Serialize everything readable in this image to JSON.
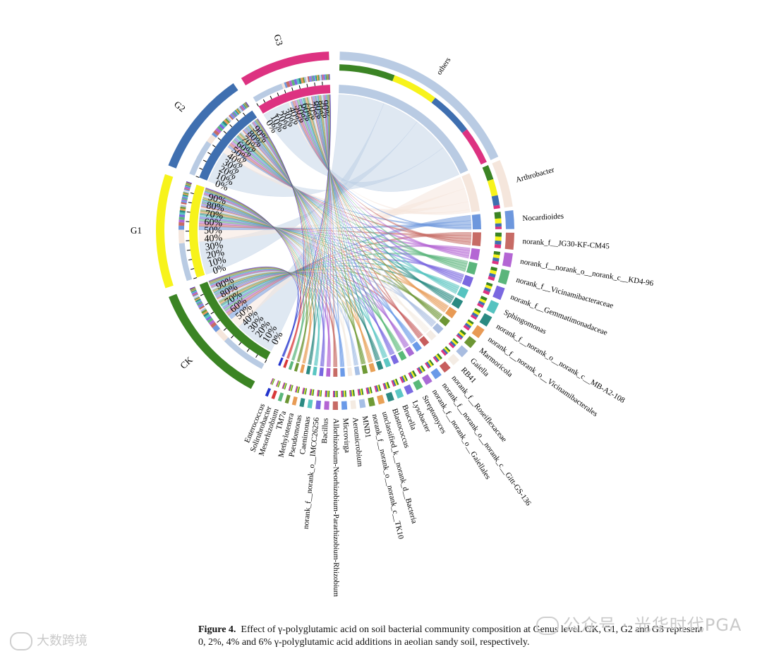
{
  "chart_data": {
    "type": "chord",
    "samples": [
      {
        "name": "CK",
        "color": "#3b8424"
      },
      {
        "name": "G1",
        "color": "#f7f31b"
      },
      {
        "name": "G2",
        "color": "#3f6fb0"
      },
      {
        "name": "G3",
        "color": "#dd3281"
      }
    ],
    "genera": [
      {
        "name": "others",
        "color": "#b9cbe3",
        "values": [
          34,
          28,
          27,
          23
        ]
      },
      {
        "name": "Arthrobacter",
        "color": "#f5e6dc",
        "values": [
          9,
          10,
          6,
          2
        ]
      },
      {
        "name": "Nocardioides",
        "color": "#6d97dd",
        "values": [
          4,
          3,
          2,
          1.5
        ]
      },
      {
        "name": "norank_f__JG30-KF-CM45",
        "color": "#c76b65",
        "values": [
          2.5,
          2.5,
          2.3,
          2.2
        ]
      },
      {
        "name": "norank_f__norank_o__norank_c__KD4-96",
        "color": "#b466d4",
        "values": [
          2,
          2,
          2,
          1.8
        ]
      },
      {
        "name": "norank_f__Vicinamibacteraceae",
        "color": "#5bb57c",
        "values": [
          2,
          2,
          2,
          2
        ]
      },
      {
        "name": "norank_f__Gemmatimonadaceae",
        "color": "#7a68e0",
        "values": [
          1.6,
          1.7,
          1.8,
          1.9
        ]
      },
      {
        "name": "Sphingomonas",
        "color": "#56c3c0",
        "values": [
          1.8,
          1.6,
          1.5,
          1.6
        ]
      },
      {
        "name": "norank_f__norank_o__norank_c__MB-A2-108",
        "color": "#2a8a82",
        "values": [
          1.5,
          1.5,
          1.6,
          1.5
        ]
      },
      {
        "name": "norank_f__norank_o__Vicinamibacterales",
        "color": "#e89a55",
        "values": [
          1.3,
          1.4,
          1.5,
          1.6
        ]
      },
      {
        "name": "Marmoricola",
        "color": "#6d9634",
        "values": [
          1.5,
          1.3,
          1.2,
          1.0
        ]
      },
      {
        "name": "Gaiella",
        "color": "#a9bde0",
        "values": [
          1.1,
          1.2,
          1.3,
          1.3
        ]
      },
      {
        "name": "RB41",
        "color": "#f4ece4",
        "values": [
          1,
          1,
          1.2,
          1.3
        ]
      },
      {
        "name": "norank_f__Roseiflexaceae",
        "color": "#c75d5d",
        "values": [
          1.2,
          1.1,
          1.0,
          1.0
        ]
      },
      {
        "name": "norank_f__norank_o__norank_c__Gitt-GS-136",
        "color": "#6a9ae8",
        "values": [
          1,
          1.1,
          1.1,
          1.0
        ]
      },
      {
        "name": "norank_f__norank_o__Gaiellales",
        "color": "#a96bd6",
        "values": [
          1,
          1,
          1,
          1
        ]
      },
      {
        "name": "Streptomyces",
        "color": "#5ab978",
        "values": [
          1.1,
          1.0,
          0.9,
          0.9
        ]
      },
      {
        "name": "Lysobacter",
        "color": "#7b6be2",
        "values": [
          0.8,
          0.9,
          1.0,
          1.1
        ]
      },
      {
        "name": "Brucella",
        "color": "#5cc7c4",
        "values": [
          0.9,
          0.9,
          0.9,
          0.9
        ]
      },
      {
        "name": "Blastococcus",
        "color": "#2d8a82",
        "values": [
          1,
          0.9,
          0.8,
          0.8
        ]
      },
      {
        "name": "unclassified_k__norank_d__Bacteria",
        "color": "#e8a157",
        "values": [
          0.8,
          0.8,
          0.9,
          0.9
        ]
      },
      {
        "name": "norank_f__norank_o__norank_c__TK10",
        "color": "#6f9a35",
        "values": [
          0.8,
          0.8,
          0.8,
          0.9
        ]
      },
      {
        "name": "MND1",
        "color": "#a6bfe5",
        "values": [
          0.8,
          0.8,
          0.8,
          0.8
        ]
      },
      {
        "name": "Aeromicrobium",
        "color": "#f4ebe2",
        "values": [
          0.9,
          0.8,
          0.7,
          0.6
        ]
      },
      {
        "name": "Microvirga",
        "color": "#6b9ae8",
        "values": [
          0.7,
          0.8,
          0.8,
          0.8
        ]
      },
      {
        "name": "Allorhizobium-Neorhizobium-Pararhizobium-Rhizobium",
        "color": "#c76b65",
        "values": [
          0.8,
          0.7,
          0.7,
          0.7
        ]
      },
      {
        "name": "Bacillus",
        "color": "#b365d3",
        "values": [
          0.7,
          0.7,
          0.7,
          0.7
        ]
      },
      {
        "name": "norank_f__norank_o__IMCC26256",
        "color": "#7868e0",
        "values": [
          0.6,
          0.7,
          0.7,
          0.7
        ]
      },
      {
        "name": "Caenimonas",
        "color": "#5ac6c2",
        "values": [
          0.7,
          0.6,
          0.6,
          0.6
        ]
      },
      {
        "name": "Pseudomonas",
        "color": "#2b8a82",
        "values": [
          0.6,
          0.6,
          0.6,
          0.6
        ]
      },
      {
        "name": "Methylotenera",
        "color": "#e89c55",
        "values": [
          0.6,
          0.6,
          0.5,
          0.5
        ]
      },
      {
        "name": "TM7a",
        "color": "#6c9634",
        "values": [
          0.5,
          0.5,
          0.5,
          0.5
        ]
      },
      {
        "name": "Mesorhizobium",
        "color": "#5bb67c",
        "values": [
          0.5,
          0.5,
          0.5,
          0.5
        ]
      },
      {
        "name": "Solirubrobacter",
        "color": "#d83a3a",
        "values": [
          0.5,
          0.5,
          0.4,
          0.4
        ]
      },
      {
        "name": "Enterococcus",
        "color": "#2233cc",
        "values": [
          0.4,
          0.4,
          0.4,
          0.4
        ]
      }
    ],
    "scale_ticks": [
      "0%",
      "10%",
      "20%",
      "30%",
      "40%",
      "50%",
      "60%",
      "70%",
      "80%",
      "90%"
    ]
  },
  "caption": {
    "figure_label": "Figure 4.",
    "text": "Effect of γ-polyglutamic acid on soil bacterial community composition at Genus level. CK, G1, G2 and G3 represent 0, 2%, 4% and 6% γ-polyglutamic acid additions in aeolian sandy soil, respectively."
  },
  "watermarks": {
    "right": "公众号 · 光华时代PGA",
    "left": "大数跨境"
  }
}
